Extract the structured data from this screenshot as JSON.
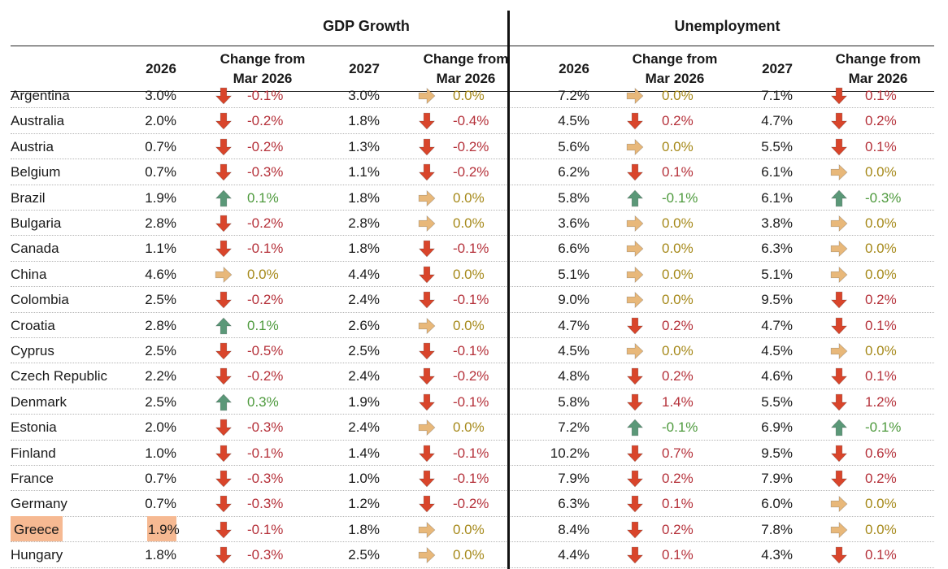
{
  "groups": {
    "gdp": "GDP Growth",
    "unemployment": "Unemployment"
  },
  "columns": {
    "y2026": "2026",
    "y2027": "2027",
    "change": "Change from\nMar 2026"
  },
  "colors": {
    "down": "#d9452b",
    "up": "#5b9878",
    "flat": "#e8b87a",
    "highlight": "#f6b992"
  },
  "rows": [
    {
      "country": "Argentina",
      "gdp26": "3.0%",
      "gdp26_dir": "down",
      "gdp26_chg": "-0.1%",
      "gdp27": "3.0%",
      "gdp27_dir": "flat",
      "gdp27_chg": "0.0%",
      "un26": "7.2%",
      "un26_dir": "flat",
      "un26_chg": "0.0%",
      "un27": "7.1%",
      "un27_dir": "down",
      "un27_chg": "0.1%"
    },
    {
      "country": "Australia",
      "gdp26": "2.0%",
      "gdp26_dir": "down",
      "gdp26_chg": "-0.2%",
      "gdp27": "1.8%",
      "gdp27_dir": "down",
      "gdp27_chg": "-0.4%",
      "un26": "4.5%",
      "un26_dir": "down",
      "un26_chg": "0.2%",
      "un27": "4.7%",
      "un27_dir": "down",
      "un27_chg": "0.2%"
    },
    {
      "country": "Austria",
      "gdp26": "0.7%",
      "gdp26_dir": "down",
      "gdp26_chg": "-0.2%",
      "gdp27": "1.3%",
      "gdp27_dir": "down",
      "gdp27_chg": "-0.2%",
      "un26": "5.6%",
      "un26_dir": "flat",
      "un26_chg": "0.0%",
      "un27": "5.5%",
      "un27_dir": "down",
      "un27_chg": "0.1%"
    },
    {
      "country": "Belgium",
      "gdp26": "0.7%",
      "gdp26_dir": "down",
      "gdp26_chg": "-0.3%",
      "gdp27": "1.1%",
      "gdp27_dir": "down",
      "gdp27_chg": "-0.2%",
      "un26": "6.2%",
      "un26_dir": "down",
      "un26_chg": "0.1%",
      "un27": "6.1%",
      "un27_dir": "flat",
      "un27_chg": "0.0%"
    },
    {
      "country": "Brazil",
      "gdp26": "1.9%",
      "gdp26_dir": "up",
      "gdp26_chg": "0.1%",
      "gdp27": "1.8%",
      "gdp27_dir": "flat",
      "gdp27_chg": "0.0%",
      "un26": "5.8%",
      "un26_dir": "up",
      "un26_chg": "-0.1%",
      "un27": "6.1%",
      "un27_dir": "up",
      "un27_chg": "-0.3%"
    },
    {
      "country": "Bulgaria",
      "gdp26": "2.8%",
      "gdp26_dir": "down",
      "gdp26_chg": "-0.2%",
      "gdp27": "2.8%",
      "gdp27_dir": "flat",
      "gdp27_chg": "0.0%",
      "un26": "3.6%",
      "un26_dir": "flat",
      "un26_chg": "0.0%",
      "un27": "3.8%",
      "un27_dir": "flat",
      "un27_chg": "0.0%"
    },
    {
      "country": "Canada",
      "gdp26": "1.1%",
      "gdp26_dir": "down",
      "gdp26_chg": "-0.1%",
      "gdp27": "1.8%",
      "gdp27_dir": "down",
      "gdp27_chg": "-0.1%",
      "un26": "6.6%",
      "un26_dir": "flat",
      "un26_chg": "0.0%",
      "un27": "6.3%",
      "un27_dir": "flat",
      "un27_chg": "0.0%"
    },
    {
      "country": "China",
      "gdp26": "4.6%",
      "gdp26_dir": "flat",
      "gdp26_chg": "0.0%",
      "gdp27": "4.4%",
      "gdp27_dir": "down",
      "gdp27_chg": "0.0%",
      "un26": "5.1%",
      "un26_dir": "flat",
      "un26_chg": "0.0%",
      "un27": "5.1%",
      "un27_dir": "flat",
      "un27_chg": "0.0%"
    },
    {
      "country": "Colombia",
      "gdp26": "2.5%",
      "gdp26_dir": "down",
      "gdp26_chg": "-0.2%",
      "gdp27": "2.4%",
      "gdp27_dir": "down",
      "gdp27_chg": "-0.1%",
      "un26": "9.0%",
      "un26_dir": "flat",
      "un26_chg": "0.0%",
      "un27": "9.5%",
      "un27_dir": "down",
      "un27_chg": "0.2%"
    },
    {
      "country": "Croatia",
      "gdp26": "2.8%",
      "gdp26_dir": "up",
      "gdp26_chg": "0.1%",
      "gdp27": "2.6%",
      "gdp27_dir": "flat",
      "gdp27_chg": "0.0%",
      "un26": "4.7%",
      "un26_dir": "down",
      "un26_chg": "0.2%",
      "un27": "4.7%",
      "un27_dir": "down",
      "un27_chg": "0.1%"
    },
    {
      "country": "Cyprus",
      "gdp26": "2.5%",
      "gdp26_dir": "down",
      "gdp26_chg": "-0.5%",
      "gdp27": "2.5%",
      "gdp27_dir": "down",
      "gdp27_chg": "-0.1%",
      "un26": "4.5%",
      "un26_dir": "flat",
      "un26_chg": "0.0%",
      "un27": "4.5%",
      "un27_dir": "flat",
      "un27_chg": "0.0%"
    },
    {
      "country": "Czech Republic",
      "gdp26": "2.2%",
      "gdp26_dir": "down",
      "gdp26_chg": "-0.2%",
      "gdp27": "2.4%",
      "gdp27_dir": "down",
      "gdp27_chg": "-0.2%",
      "un26": "4.8%",
      "un26_dir": "down",
      "un26_chg": "0.2%",
      "un27": "4.6%",
      "un27_dir": "down",
      "un27_chg": "0.1%"
    },
    {
      "country": "Denmark",
      "gdp26": "2.5%",
      "gdp26_dir": "up",
      "gdp26_chg": "0.3%",
      "gdp27": "1.9%",
      "gdp27_dir": "down",
      "gdp27_chg": "-0.1%",
      "un26": "5.8%",
      "un26_dir": "down",
      "un26_chg": "1.4%",
      "un27": "5.5%",
      "un27_dir": "down",
      "un27_chg": "1.2%"
    },
    {
      "country": "Estonia",
      "gdp26": "2.0%",
      "gdp26_dir": "down",
      "gdp26_chg": "-0.3%",
      "gdp27": "2.4%",
      "gdp27_dir": "flat",
      "gdp27_chg": "0.0%",
      "un26": "7.2%",
      "un26_dir": "up",
      "un26_chg": "-0.1%",
      "un27": "6.9%",
      "un27_dir": "up",
      "un27_chg": "-0.1%"
    },
    {
      "country": "Finland",
      "gdp26": "1.0%",
      "gdp26_dir": "down",
      "gdp26_chg": "-0.1%",
      "gdp27": "1.4%",
      "gdp27_dir": "down",
      "gdp27_chg": "-0.1%",
      "un26": "10.2%",
      "un26_dir": "down",
      "un26_chg": "0.7%",
      "un27": "9.5%",
      "un27_dir": "down",
      "un27_chg": "0.6%"
    },
    {
      "country": "France",
      "gdp26": "0.7%",
      "gdp26_dir": "down",
      "gdp26_chg": "-0.3%",
      "gdp27": "1.0%",
      "gdp27_dir": "down",
      "gdp27_chg": "-0.1%",
      "un26": "7.9%",
      "un26_dir": "down",
      "un26_chg": "0.2%",
      "un27": "7.9%",
      "un27_dir": "down",
      "un27_chg": "0.2%"
    },
    {
      "country": "Germany",
      "gdp26": "0.7%",
      "gdp26_dir": "down",
      "gdp26_chg": "-0.3%",
      "gdp27": "1.2%",
      "gdp27_dir": "down",
      "gdp27_chg": "-0.2%",
      "un26": "6.3%",
      "un26_dir": "down",
      "un26_chg": "0.1%",
      "un27": "6.0%",
      "un27_dir": "flat",
      "un27_chg": "0.0%"
    },
    {
      "country": "Greece",
      "highlight": true,
      "gdp26": "1.9%",
      "gdp26_dir": "down",
      "gdp26_chg": "-0.1%",
      "gdp27": "1.8%",
      "gdp27_dir": "flat",
      "gdp27_chg": "0.0%",
      "un26": "8.4%",
      "un26_dir": "down",
      "un26_chg": "0.2%",
      "un27": "7.8%",
      "un27_dir": "flat",
      "un27_chg": "0.0%"
    },
    {
      "country": "Hungary",
      "gdp26": "1.8%",
      "gdp26_dir": "down",
      "gdp26_chg": "-0.3%",
      "gdp27": "2.5%",
      "gdp27_dir": "flat",
      "gdp27_chg": "0.0%",
      "un26": "4.4%",
      "un26_dir": "down",
      "un26_chg": "0.1%",
      "un27": "4.3%",
      "un27_dir": "down",
      "un27_chg": "0.1%"
    }
  ]
}
